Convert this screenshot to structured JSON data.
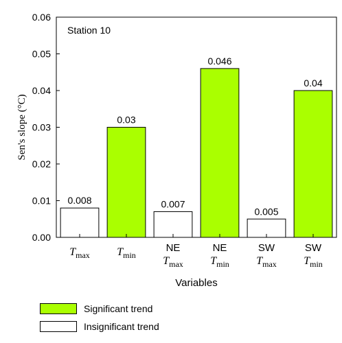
{
  "chart_data": {
    "type": "bar",
    "annotation": "Station 10",
    "ylabel": "Sen's slope (°C)",
    "xlabel": "Variables",
    "ylim": [
      0,
      0.06
    ],
    "yticks": [
      "0.00",
      "0.01",
      "0.02",
      "0.03",
      "0.04",
      "0.05",
      "0.06"
    ],
    "ytick_values": [
      0,
      0.01,
      0.02,
      0.03,
      0.04,
      0.05,
      0.06
    ],
    "categories": [
      {
        "prefix": "",
        "sym": "T",
        "sub": "max"
      },
      {
        "prefix": "",
        "sym": "T",
        "sub": "min"
      },
      {
        "prefix": "NE",
        "sym": "T",
        "sub": "max"
      },
      {
        "prefix": "NE",
        "sym": "T",
        "sub": "min"
      },
      {
        "prefix": "SW",
        "sym": "T",
        "sub": "max"
      },
      {
        "prefix": "SW",
        "sym": "T",
        "sub": "min"
      }
    ],
    "values": [
      0.008,
      0.03,
      0.007,
      0.046,
      0.005,
      0.04
    ],
    "value_labels": [
      "0.008",
      "0.03",
      "0.007",
      "0.046",
      "0.005",
      "0.04"
    ],
    "significant": [
      false,
      true,
      false,
      true,
      false,
      true
    ],
    "colors": {
      "significant": "#aaff00",
      "insignificant": "#ffffff",
      "outline": "#000000"
    },
    "legend": [
      {
        "label": "Significant trend",
        "color": "#aaff00"
      },
      {
        "label": "Insignificant trend",
        "color": "#ffffff"
      }
    ]
  }
}
